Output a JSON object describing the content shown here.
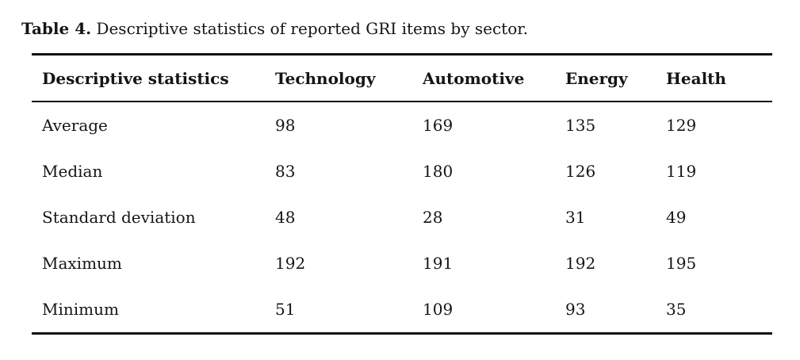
{
  "caption": {
    "label": "Table 4.",
    "text": " Descriptive statistics of reported GRI items by sector."
  },
  "table": {
    "columns": [
      "Descriptive statistics",
      "Technology",
      "Automotive",
      "Energy",
      "Health"
    ],
    "rows": [
      {
        "label": "Average",
        "values": [
          "98",
          "169",
          "135",
          "129"
        ]
      },
      {
        "label": "Median",
        "values": [
          "83",
          "180",
          "126",
          "119"
        ]
      },
      {
        "label": "Standard deviation",
        "values": [
          "48",
          "28",
          "31",
          "49"
        ]
      },
      {
        "label": "Maximum",
        "values": [
          "192",
          "191",
          "192",
          "195"
        ]
      },
      {
        "label": "Minimum",
        "values": [
          "51",
          "109",
          "93",
          "35"
        ]
      }
    ]
  },
  "colors": {
    "text": "#151515",
    "rule": "#111111",
    "background": "#ffffff"
  }
}
